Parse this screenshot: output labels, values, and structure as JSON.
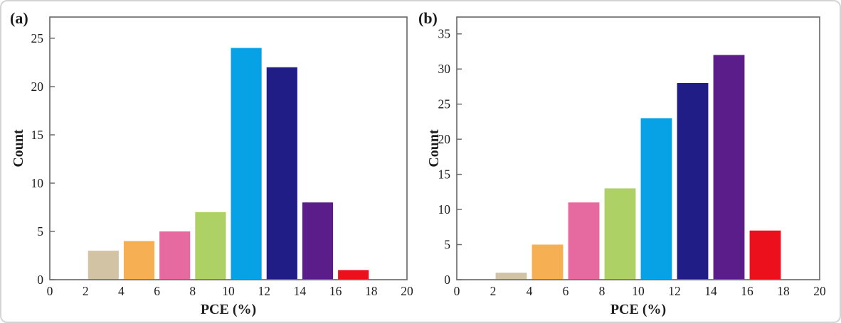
{
  "figure": {
    "background": "#ffffff",
    "border_color": "#d4d4d4",
    "frame_color": "#6e6e6e",
    "text_color": "#1c1c1c"
  },
  "bar_colors": [
    "#d3c3a5",
    "#f6b053",
    "#e6699f",
    "#add164",
    "#07a2e6",
    "#201e86",
    "#5a1d8a",
    "#eb101c"
  ],
  "chart_data": [
    {
      "type": "bar",
      "panel_label": "(a)",
      "title": "",
      "xlabel": "PCE (%)",
      "ylabel": "Count",
      "bin_edges": [
        2,
        4,
        6,
        8,
        10,
        12,
        14,
        16,
        18
      ],
      "categories": [
        "2-4",
        "4-6",
        "6-8",
        "8-10",
        "10-12",
        "12-14",
        "14-16",
        "16-18"
      ],
      "values": [
        3,
        4,
        5,
        7,
        24,
        22,
        8,
        1
      ],
      "xlim": [
        0,
        20
      ],
      "ylim": [
        0,
        27.2
      ],
      "x_ticks": [
        0,
        2,
        4,
        6,
        8,
        10,
        12,
        14,
        16,
        18,
        20
      ],
      "y_ticks": [
        0,
        5,
        10,
        15,
        20,
        25
      ],
      "grid": false,
      "legend": "none"
    },
    {
      "type": "bar",
      "panel_label": "(b)",
      "title": "",
      "xlabel": "PCE (%)",
      "ylabel": "Count",
      "bin_edges": [
        2,
        4,
        6,
        8,
        10,
        12,
        14,
        16,
        18
      ],
      "categories": [
        "2-4",
        "4-6",
        "6-8",
        "8-10",
        "10-12",
        "12-14",
        "14-16",
        "16-18"
      ],
      "values": [
        1,
        5,
        11,
        13,
        23,
        28,
        32,
        7
      ],
      "xlim": [
        0,
        20
      ],
      "ylim": [
        0,
        37.4
      ],
      "x_ticks": [
        0,
        2,
        4,
        6,
        8,
        10,
        12,
        14,
        16,
        18,
        20
      ],
      "y_ticks": [
        0,
        5,
        10,
        15,
        20,
        25,
        30,
        35
      ],
      "grid": false,
      "legend": "none"
    }
  ]
}
